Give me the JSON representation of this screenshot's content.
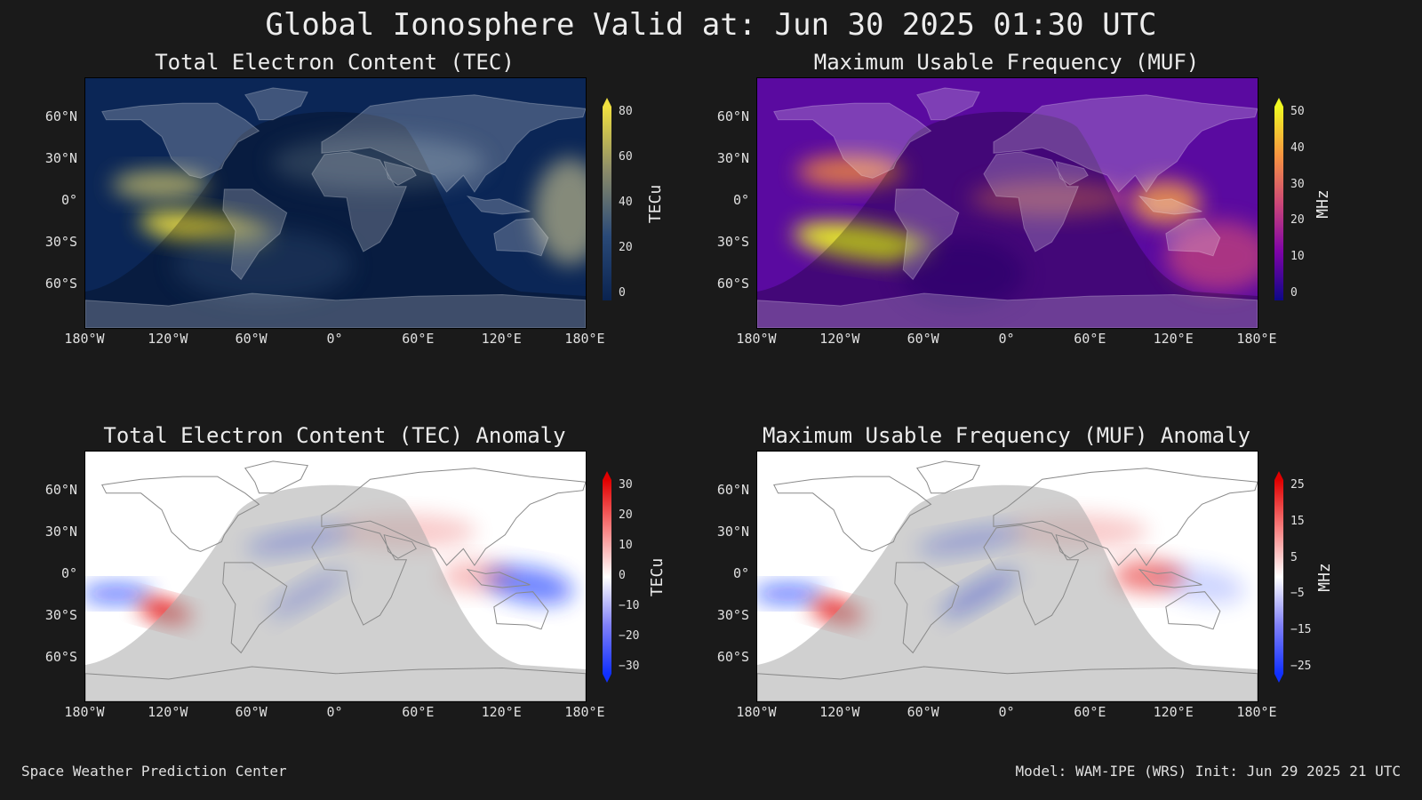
{
  "title": "Global Ionosphere Valid at: Jun 30 2025 01:30 UTC",
  "lat_ticks": [
    "60°N",
    "30°N",
    "0°",
    "30°S",
    "60°S"
  ],
  "lon_ticks": [
    "180°W",
    "120°W",
    "60°W",
    "0°",
    "60°E",
    "120°E",
    "180°E"
  ],
  "panels": [
    {
      "title": "Total Electron Content (TEC)",
      "colorbar": {
        "unit": "TECu",
        "ticks": [
          "80",
          "60",
          "40",
          "20",
          "0"
        ],
        "palette": "cividis"
      }
    },
    {
      "title": "Maximum Usable Frequency (MUF)",
      "colorbar": {
        "unit": "MHz",
        "ticks": [
          "50",
          "40",
          "30",
          "20",
          "10",
          "0"
        ],
        "palette": "plasma"
      }
    },
    {
      "title": "Total Electron Content (TEC) Anomaly",
      "colorbar": {
        "unit": "TECu",
        "ticks": [
          "30",
          "20",
          "10",
          "0",
          "−10",
          "−20",
          "−30"
        ],
        "palette": "bwr"
      }
    },
    {
      "title": "Maximum Usable Frequency (MUF) Anomaly",
      "colorbar": {
        "unit": "MHz",
        "ticks": [
          "25",
          "15",
          "5",
          "−5",
          "−15",
          "−25"
        ],
        "palette": "bwr"
      }
    }
  ],
  "footer": {
    "left": "Space Weather Prediction Center",
    "right": "Model: WAM-IPE (WRS) Init: Jun 29 2025 21 UTC"
  },
  "colors": {
    "background": "#1a1a1a",
    "tec_low": "#0a2350",
    "tec_high": "#f0e040",
    "muf_low": "#0d0887",
    "muf_mid": "#cc4778",
    "muf_high": "#f0f921",
    "anom_neg": "#1030ff",
    "anom_pos": "#e00000"
  }
}
